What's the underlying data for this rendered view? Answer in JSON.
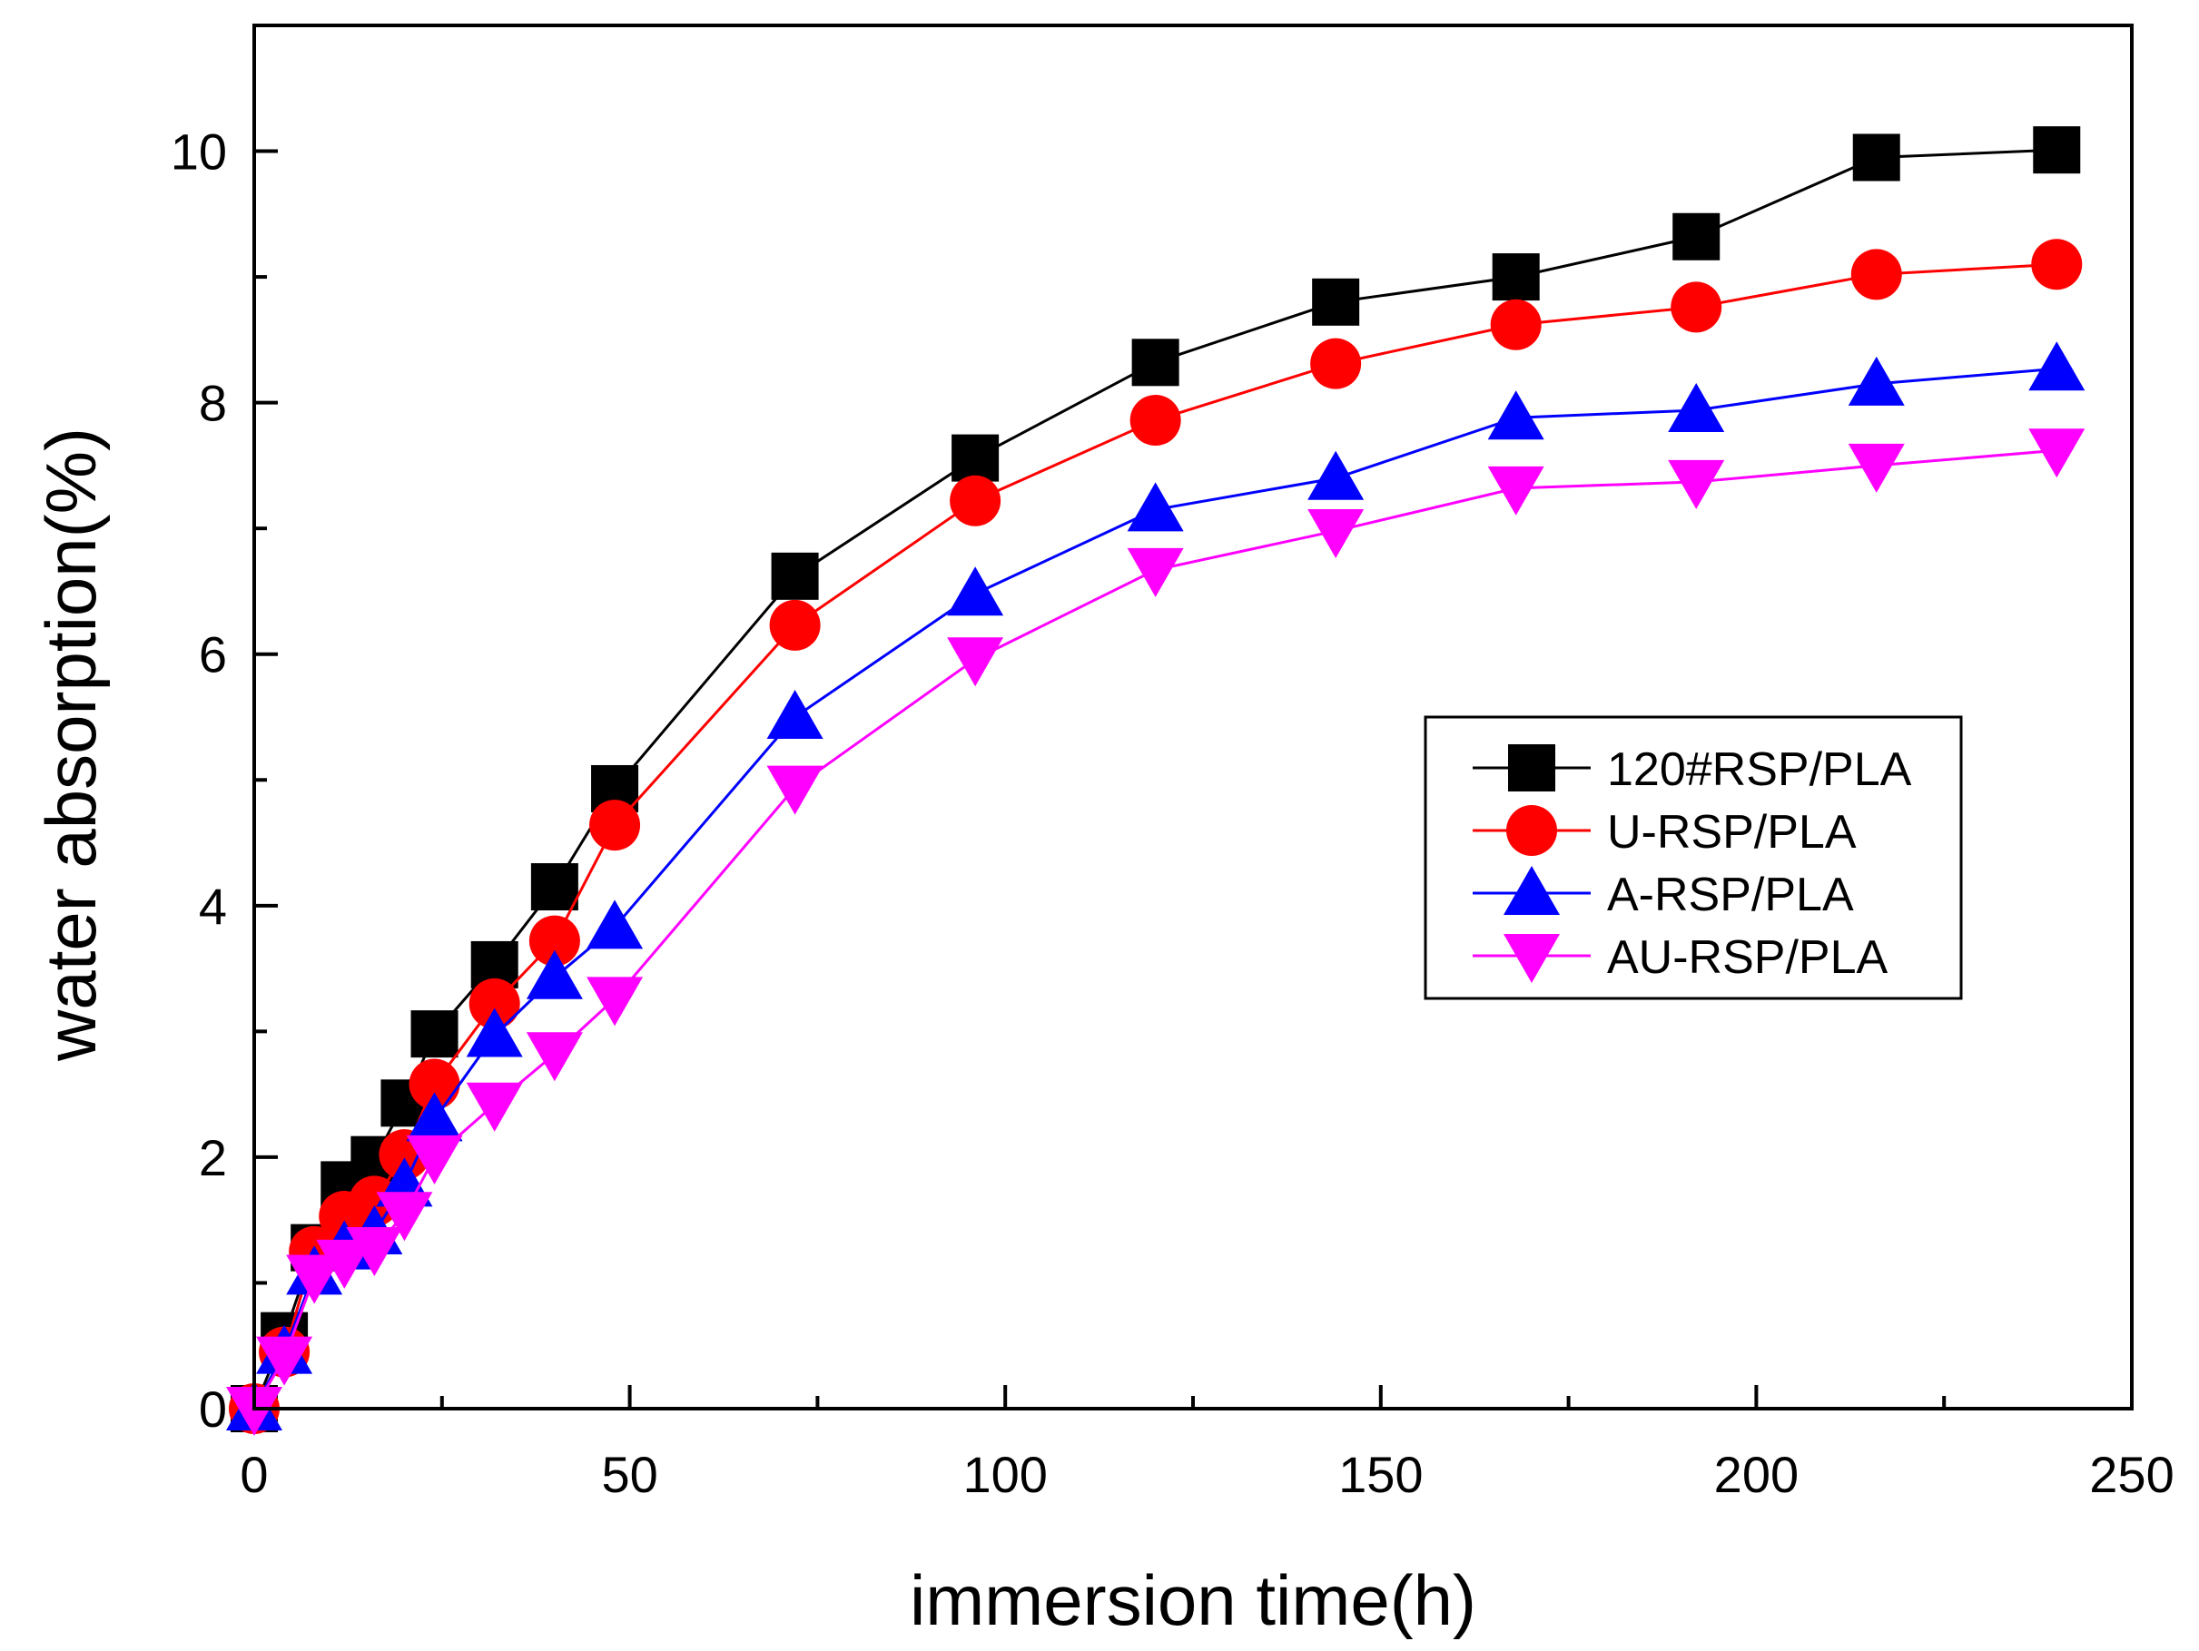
{
  "chart_data": {
    "type": "line",
    "title": "",
    "xlabel": "immersion time(h)",
    "ylabel": "water absorption(%)",
    "xlim": [
      0,
      250
    ],
    "ylim": [
      0,
      11
    ],
    "xticks": [
      0,
      50,
      100,
      150,
      200,
      250
    ],
    "xticks_minor": [
      25,
      75,
      125,
      175,
      225
    ],
    "yticks": [
      0,
      2,
      4,
      6,
      8,
      10
    ],
    "yticks_minor": [
      1,
      3,
      5,
      7,
      9,
      11
    ],
    "grid": false,
    "legend_position": "center-right",
    "x": [
      0,
      4,
      8,
      12,
      16,
      20,
      24,
      32,
      40,
      48,
      72,
      96,
      120,
      144,
      168,
      192,
      216,
      240
    ],
    "series": [
      {
        "name": "120#RSP/PLA",
        "color": "#000000",
        "marker": "square",
        "values": [
          0,
          0.58,
          1.28,
          1.78,
          1.98,
          2.43,
          2.98,
          3.53,
          4.15,
          4.93,
          6.62,
          7.56,
          8.32,
          8.8,
          9.0,
          9.32,
          9.95,
          10.01
        ]
      },
      {
        "name": "U-RSP/PLA",
        "color": "#ff0000",
        "marker": "circle",
        "values": [
          0,
          0.45,
          1.25,
          1.53,
          1.65,
          2.02,
          2.58,
          3.22,
          3.72,
          4.64,
          6.23,
          7.22,
          7.86,
          8.31,
          8.62,
          8.76,
          9.02,
          9.1
        ]
      },
      {
        "name": "A-RSP/PLA",
        "color": "#0000ff",
        "marker": "triangle-up",
        "values": [
          0,
          0.45,
          1.08,
          1.28,
          1.4,
          1.78,
          2.3,
          2.97,
          3.43,
          3.83,
          5.5,
          6.48,
          7.15,
          7.4,
          7.88,
          7.94,
          8.15,
          8.27
        ]
      },
      {
        "name": "AU-RSP/PLA",
        "color": "#ff00ff",
        "marker": "triangle-down",
        "values": [
          0,
          0.4,
          1.05,
          1.17,
          1.27,
          1.55,
          2.0,
          2.42,
          2.82,
          3.26,
          4.94,
          5.96,
          6.67,
          6.98,
          7.32,
          7.37,
          7.5,
          7.62
        ]
      }
    ]
  }
}
